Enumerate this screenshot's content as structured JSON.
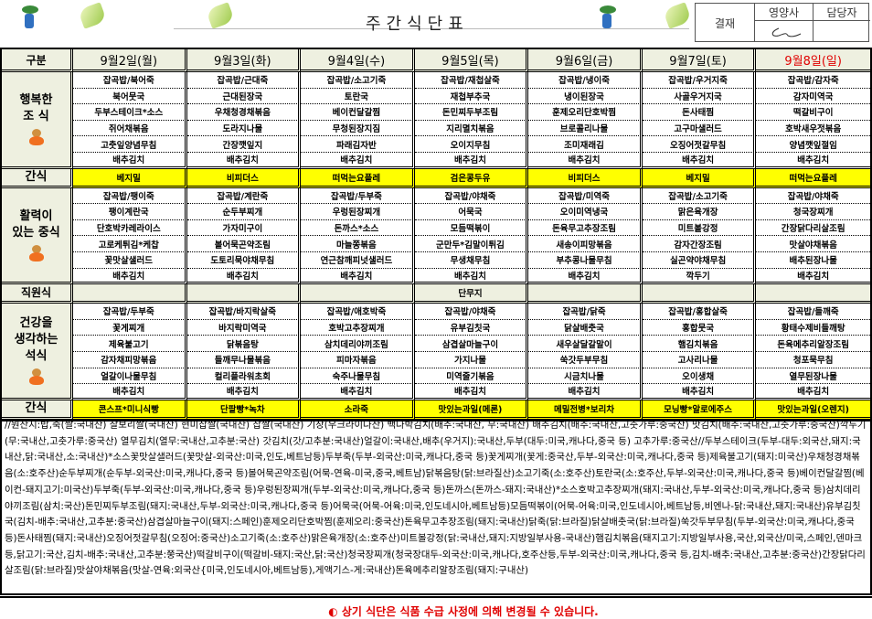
{
  "header": {
    "title": "주간식단표",
    "approval": {
      "label": "결재",
      "roles": [
        "영양사",
        "담당자"
      ]
    }
  },
  "table": {
    "corner": "구분",
    "days": [
      "9월2일(월)",
      "9월3일(화)",
      "9월4일(수)",
      "9월5일(목)",
      "9월6일(금)",
      "9월7일(토)",
      "9월8일(일)"
    ],
    "breakfast": {
      "label": [
        "행복한",
        "조 식"
      ],
      "menu": [
        [
          "잡곡밥/북어죽",
          "북어뭇국",
          "두부스테이크*소스",
          "쥐어채볶음",
          "고춧잎양념무침",
          "배추김치"
        ],
        [
          "잡곡밥/근대죽",
          "근대된장국",
          "우채청경채볶음",
          "도라지나물",
          "간장깻잎지",
          "배추김치"
        ],
        [
          "잡곡밥/소고기죽",
          "토란국",
          "베이컨달갈찜",
          "무청된장지짐",
          "파래김자반",
          "배추김치"
        ],
        [
          "잡곡밥/재첩살죽",
          "재첩부추국",
          "돈민찌두부조림",
          "지리멸치볶음",
          "오이지무침",
          "배추김치"
        ],
        [
          "잡곡밥/냉이죽",
          "냉이된장국",
          "훈제오리단호박찜",
          "브로콜리나물",
          "조미재래김",
          "배추김치"
        ],
        [
          "잡곡밥/우거지죽",
          "사골우거지국",
          "돈사태찜",
          "고구마샐러드",
          "오징어젓갈무침",
          "배추김치"
        ],
        [
          "잡곡밥/감자죽",
          "감자미역국",
          "떡갈비구이",
          "호박새우젓볶음",
          "양념깻잎절임",
          "배추김치"
        ]
      ]
    },
    "snack1": {
      "label": "간식",
      "items": [
        "베지밀",
        "비피더스",
        "떠먹는요플레",
        "검은콩두유",
        "비피더스",
        "베지밀",
        "떠먹는요플레"
      ]
    },
    "lunch": {
      "label": [
        "활력이",
        "있는 중식"
      ],
      "menu": [
        [
          "잡곡밥/팽이죽",
          "팽이계란국",
          "단호박카레라이스",
          "고로케튀김*케찹",
          "꽃맛살샐러드",
          "배추김치"
        ],
        [
          "잡곡밥/계란죽",
          "순두부찌개",
          "가자미구이",
          "볼어묵곤약조림",
          "도토리묵야채무침",
          "배추김치"
        ],
        [
          "잡곡밥/두부죽",
          "우렁된장찌개",
          "돈까스*소스",
          "마늘쫑볶음",
          "연근참깨피넛샐러드",
          "배추김치"
        ],
        [
          "잡곡밥/야채죽",
          "어묵국",
          "모듬떡볶이",
          "군만두*김말이튀김",
          "무생채무침",
          "배추김치"
        ],
        [
          "잡곡밥/미역죽",
          "오이미역냉국",
          "돈육무고추장조림",
          "새송이피망볶음",
          "부추콩나물무침",
          "배추김치"
        ],
        [
          "잡곡밥/소고기죽",
          "맑은육개장",
          "미트볼강정",
          "감자간장조림",
          "실곤약야채무침",
          "깍두기"
        ],
        [
          "잡곡밥/야채죽",
          "청국장찌개",
          "간장닭다리살조림",
          "맛살야채볶음",
          "배추된장나물",
          "배추김치"
        ]
      ]
    },
    "staff": {
      "label": "직원식",
      "items": [
        "",
        "",
        "",
        "단무지",
        "",
        "",
        ""
      ]
    },
    "dinner": {
      "label": [
        "건강을",
        "생각하는",
        "석식"
      ],
      "menu": [
        [
          "잡곡밥/두부죽",
          "꽃게찌개",
          "제육불고기",
          "감자채피망볶음",
          "얼갈이나물무침",
          "배추김치"
        ],
        [
          "잡곡밥/바지락살죽",
          "바지락미역국",
          "닭볶음탕",
          "들깨무나물볶음",
          "컬리플라워초회",
          "배추김치"
        ],
        [
          "잡곡밥/애호박죽",
          "호박고추장찌개",
          "삼치데리야끼조림",
          "피마자볶음",
          "숙주나물무침",
          "배추김치"
        ],
        [
          "잡곡밥/야채죽",
          "유부김칫국",
          "삼겹살마늘구이",
          "가지나물",
          "미역줄기볶음",
          "배추김치"
        ],
        [
          "잡곡밥/닭죽",
          "닭살배춧국",
          "새우살달갈말이",
          "쑥갓두부무침",
          "시금치나물",
          "배추김치"
        ],
        [
          "잡곡밥/홍합살죽",
          "홍합뭇국",
          "햄김치볶음",
          "고사리나물",
          "오이생채",
          "배추김치"
        ],
        [
          "잡곡밥/들깨죽",
          "황태수제비들깨탕",
          "돈육메추리알장조림",
          "청포묵무침",
          "열무된장나물",
          "배추김치"
        ]
      ]
    },
    "snack2": {
      "label": "간식",
      "items": [
        "콘스프*미니식빵",
        "단팥빵*녹차",
        "소라죽",
        "맛있는과일(메론)",
        "메밀전병*보리차",
        "모닝빵*알로에주스",
        "맛있는과일(오렌지)"
      ]
    }
  },
  "origin": "//원산지:밥,죽(쌀:국내산) 찰보리쌀(국내산) 현미찹쌀(국내산) 찹쌀(국내산) 기장(우크라이나산) 백나박김치(배추:국내산, 무:국내산) 배추김치(배추:국내산,고춧가루:중국산) 맛김치(배추:국내산,고춧가루:중국산)깍두기(무:국내산,고춧가루:중국산) 열무김치(열무:국내산,고추분:국산) 갓김치(갓/고추분:국내산)얼갈이:국내산,배추(우거지):국내산,두부(대두:미국,캐나다,중국 등) 고추가루:중국산//두부스테이크(두부-대두:외국산,돼지:국내산,닭:국내산,소:국내산)*소스꽃맛살샐러드(꽃맛살-외국산:미국,인도,베트남등)두부죽(두부-외국산:미국,캐나다,중국 등)꽃게찌개(꽃게:중국산,두부-외국산:미국,캐나다,중국 등)제육불고기(돼지:미국산)우채청경채볶음(소:호주산)순두부찌개(순두부-외국산:미국,캐나다,중국 등)볼어묵곤약조림(어묵-연육-미국,중국,베트남)닭볶음탕(닭:브라질산)소고기죽(소:호주산)토란국(소:호주산,두부-외국산:미국,캐나다,중국 등)베이컨달갈찜(베이컨-돼지고기:미국산)두부죽(두부-외국산:미국,캐나다,중국 등)우렁된장찌개(두부-외국산:미국,캐나다,중국 등)돈까스(돈까스-돼지:국내산)*소스호박고추장찌개(돼지:국내산,두부-외국산:미국,캐나다,중국 등)삼치데리야끼조림(삼치:국산)돈민찌두부조림(돼지:국내산,두부-외국산:미국,캐나다,중국 등)어묵국(어묵-어육:미국,인도네시아,베트남등)모듬떡볶이(어묵-어육:미국,인도네시아,베트남등,비엔나-닭:국내산,돼지:국내산)유부김칫국(김치-배추:국내산,고추분:중국산)삼겹살마늘구이(돼지:스페인)훈제오리단호박찜(훈제오리:중국산)돈육무고추장조림(돼지:국내산)닭죽(닭:브라질)닭살배춧국(닭:브라질)쑥갓두부무침(두부-외국산:미국,캐나다,중국 등)돈사태찜(돼지:국내산)오징어젓갈무침(오징어:중국산)소고기죽(소:호주산)맑은육개장(소:호주산)미트볼강정(닭:국내산,돼지:지방일부사용-국내산)햄김치볶음(돼지고기:지방일부사용,국산,외국산/미국,스페인,덴마크등,닭고기:국산,김치-배추:국내산,고추분:쭝국산)떡갈비구이(떡갈비-돼지:국산,닭:국산)청국장찌개(청국장대두-외국산:미국,캐나다,호주산등,두부-외국산:미국,캐나다,중국 등,김치-배추:국내산,고추분:중국산)간장닭다리살조림(닭:브라질)맛살야채볶음(맛살-연육:외국산{미국,인도네시아,베트남등),게액기스-게:국내산)돈육메추리알장조림(돼지:구내산)",
  "footer": "◐ 상기 식단은 식품 수급 사정에 의해 변경될 수 있습니다.",
  "colors": {
    "header_bg": "#eef0e0",
    "snack_bg": "#ffff00",
    "sunday": "#e00000",
    "notice": "#e00000"
  }
}
